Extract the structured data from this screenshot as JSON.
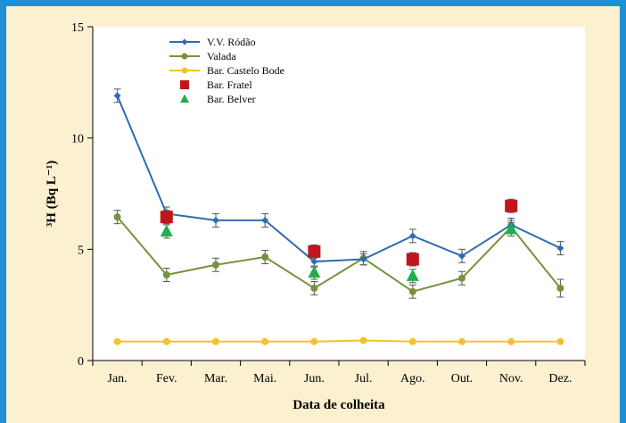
{
  "colors": {
    "frame": "#1f8fd6",
    "background": "#fbf0cf",
    "plot_bg": "#ffffff"
  },
  "chart_data": {
    "type": "line",
    "title": "",
    "xlabel": "Data de colheita",
    "ylabel": "³H (Bq L⁻¹)",
    "ylim": [
      0,
      15
    ],
    "yticks": [
      0,
      5,
      10,
      15
    ],
    "grid": false,
    "legend_position": "top-left",
    "categories": [
      "Jan.",
      "Fev.",
      "Mar.",
      "Mai.",
      "Jun.",
      "Jul.",
      "Ago.",
      "Out.",
      "Nov.",
      "Dez."
    ],
    "series": [
      {
        "name": "V.V. Ródão",
        "kind": "line",
        "marker": "diamond",
        "color": "#2e6db4",
        "values": [
          11.9,
          6.6,
          6.3,
          6.3,
          4.45,
          4.55,
          5.6,
          4.7,
          6.1,
          5.05
        ],
        "errors": [
          0.3,
          0.3,
          0.3,
          0.3,
          0.25,
          0.25,
          0.3,
          0.3,
          0.3,
          0.3
        ]
      },
      {
        "name": "Valada",
        "kind": "line",
        "marker": "circle",
        "color": "#77923c",
        "values": [
          6.45,
          3.85,
          4.3,
          4.65,
          3.25,
          4.6,
          3.1,
          3.7,
          6.0,
          3.25
        ],
        "errors": [
          0.3,
          0.3,
          0.3,
          0.3,
          0.3,
          0.3,
          0.3,
          0.3,
          0.3,
          0.4
        ]
      },
      {
        "name": "Bar. Castelo Bode",
        "kind": "line",
        "marker": "circle",
        "color": "#f6c22a",
        "values": [
          0.85,
          0.85,
          0.85,
          0.85,
          0.85,
          0.9,
          0.85,
          0.85,
          0.85,
          0.85
        ],
        "errors": null
      },
      {
        "name": "Bar. Fratel",
        "kind": "scatter",
        "marker": "square",
        "color": "#c0151b",
        "values": [
          null,
          6.45,
          null,
          null,
          4.9,
          null,
          4.55,
          null,
          6.95,
          null
        ],
        "errors": [
          null,
          0.3,
          null,
          null,
          0.3,
          null,
          0.3,
          null,
          0.3,
          null
        ]
      },
      {
        "name": "Bar. Belver",
        "kind": "scatter",
        "marker": "triangle",
        "color": "#1faf4b",
        "values": [
          null,
          5.8,
          null,
          null,
          3.95,
          null,
          3.8,
          null,
          5.9,
          null
        ],
        "errors": [
          null,
          0.3,
          null,
          null,
          0.3,
          null,
          0.3,
          null,
          0.3,
          null
        ]
      }
    ]
  }
}
